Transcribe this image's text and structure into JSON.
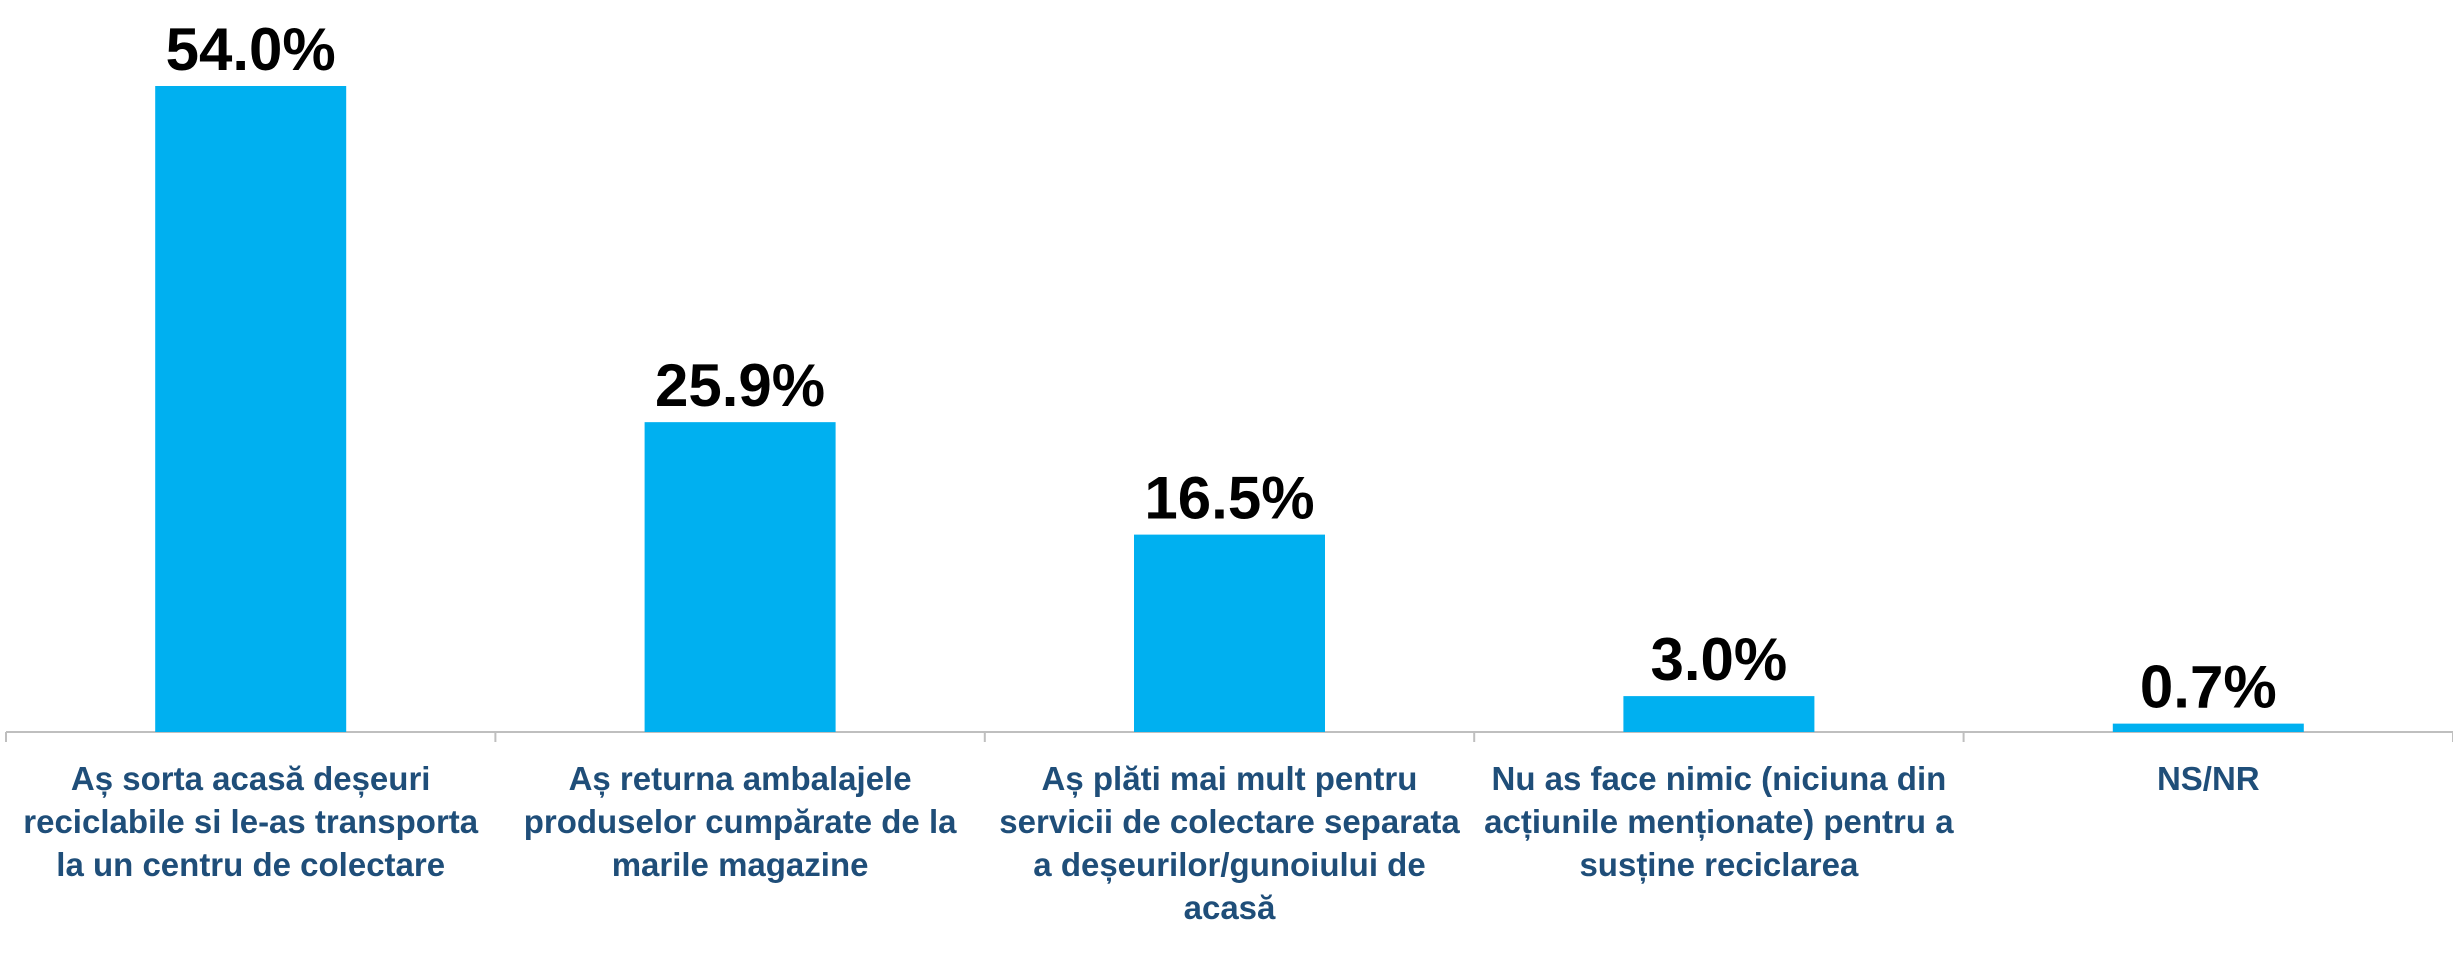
{
  "chart_data": {
    "type": "bar",
    "categories": [
      "Aș sorta acasă deșeuri reciclabile si le-as transporta la un centru de colectare",
      "Aș returna ambalajele produselor cumpărate de la marile magazine",
      "Aș plăti mai mult pentru servicii de colectare separata a deșeurilor/gunoiului de acasă",
      "Nu as face nimic (niciuna din acțiunile menționate) pentru a susține reciclarea",
      "NS/NR"
    ],
    "values": [
      54.0,
      25.9,
      16.5,
      3.0,
      0.7
    ],
    "value_labels": [
      "54.0%",
      "25.9%",
      "16.5%",
      "3.0%",
      "0.7%"
    ],
    "color": "#00b0f0"
  }
}
